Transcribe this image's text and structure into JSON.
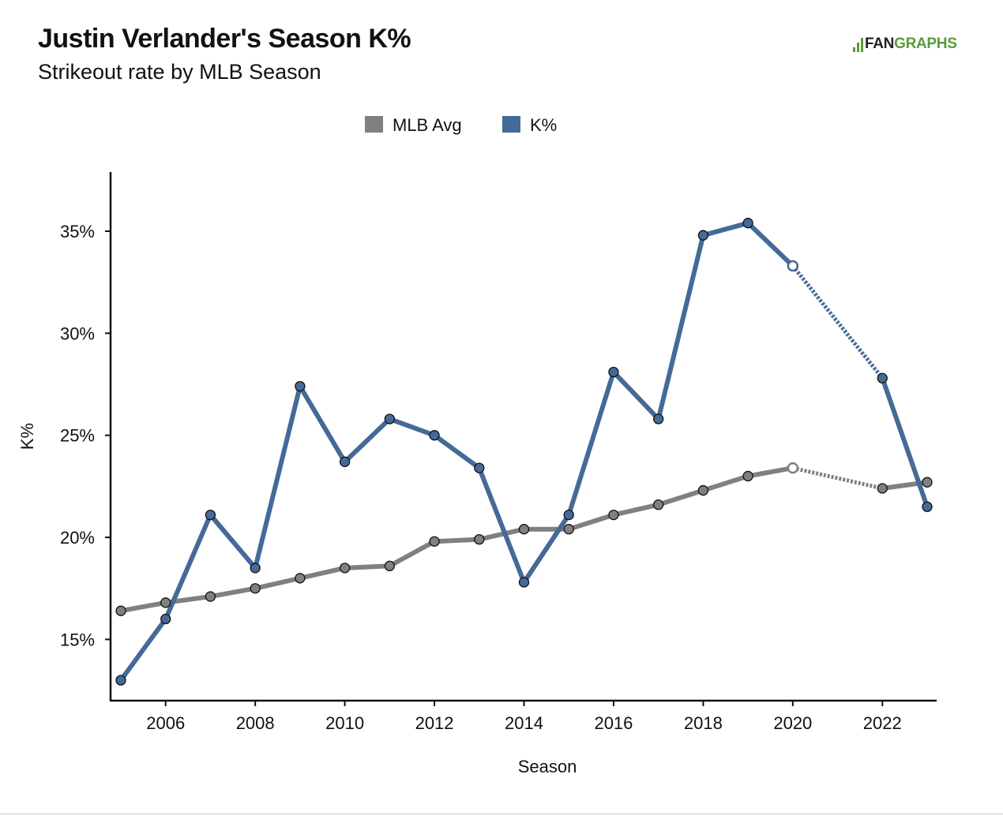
{
  "header": {
    "title": "Justin Verlander's Season K%",
    "subtitle": "Strikeout rate by MLB Season"
  },
  "logo": {
    "text_dark": "FAN",
    "text_green": "GRAPHS",
    "colors": {
      "dark": "#222222",
      "green": "#5a9b3a"
    }
  },
  "chart_data": {
    "type": "line",
    "xlabel": "Season",
    "ylabel": "K%",
    "xlim": [
      2005,
      2023
    ],
    "ylim": [
      12,
      37.9
    ],
    "x_ticks": [
      2006,
      2008,
      2010,
      2012,
      2014,
      2016,
      2018,
      2020,
      2022
    ],
    "y_ticks": [
      15,
      20,
      25,
      30,
      35
    ],
    "y_tick_suffix": "%",
    "grid": false,
    "legend_position": "top-center",
    "series": [
      {
        "name": "MLB Avg",
        "color": "#808080",
        "points": [
          [
            2005,
            16.4
          ],
          [
            2006,
            16.8
          ],
          [
            2007,
            17.1
          ],
          [
            2008,
            17.5
          ],
          [
            2009,
            18.0
          ],
          [
            2010,
            18.5
          ],
          [
            2011,
            18.6
          ],
          [
            2012,
            19.8
          ],
          [
            2013,
            19.9
          ],
          [
            2014,
            20.4
          ],
          [
            2015,
            20.4
          ],
          [
            2016,
            21.1
          ],
          [
            2017,
            21.6
          ],
          [
            2018,
            22.3
          ],
          [
            2019,
            23.0
          ],
          [
            2020,
            23.4
          ],
          [
            2022,
            22.4
          ],
          [
            2023,
            22.7
          ]
        ],
        "hollow_points": [
          2020
        ],
        "dotted_segments": [
          [
            2020,
            2022
          ]
        ]
      },
      {
        "name": "K%",
        "color": "#456a98",
        "points": [
          [
            2005,
            13.0
          ],
          [
            2006,
            16.0
          ],
          [
            2007,
            21.1
          ],
          [
            2008,
            18.5
          ],
          [
            2009,
            27.4
          ],
          [
            2010,
            23.7
          ],
          [
            2011,
            25.8
          ],
          [
            2012,
            25.0
          ],
          [
            2013,
            23.4
          ],
          [
            2014,
            17.8
          ],
          [
            2015,
            21.1
          ],
          [
            2016,
            28.1
          ],
          [
            2017,
            25.8
          ],
          [
            2018,
            34.8
          ],
          [
            2019,
            35.4
          ],
          [
            2020,
            33.3
          ],
          [
            2022,
            27.8
          ],
          [
            2023,
            21.5
          ]
        ],
        "hollow_points": [
          2020
        ],
        "dotted_segments": [
          [
            2020,
            2022
          ]
        ]
      }
    ]
  }
}
